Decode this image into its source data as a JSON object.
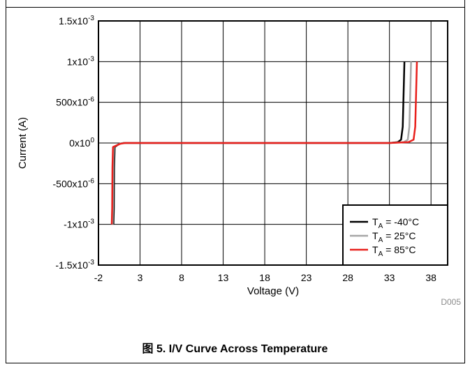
{
  "figure": {
    "tag": "D005",
    "caption": "图 5. I/V Curve Across Temperature"
  },
  "colors": {
    "series_minus40": "#000000",
    "series_25": "#a6a6a6",
    "series_85": "#e8201c"
  },
  "chart_data": {
    "type": "line",
    "title": "",
    "xlabel": "Voltage (V)",
    "ylabel": "Current (A)",
    "xlim": [
      -2,
      40
    ],
    "ylim": [
      -0.0015,
      0.0015
    ],
    "x_ticks": [
      -2,
      3,
      8,
      13,
      18,
      23,
      28,
      33,
      38
    ],
    "x_tick_labels": [
      "-2",
      "3",
      "8",
      "13",
      "18",
      "23",
      "28",
      "33",
      "38"
    ],
    "y_ticks": [
      0.0015,
      0.001,
      0.0005,
      0,
      -0.0005,
      -0.001,
      -0.0015
    ],
    "y_tick_labels": [
      {
        "base": "1.5x10",
        "exp": "-3"
      },
      {
        "base": "1x10",
        "exp": "-3"
      },
      {
        "base": "500x10",
        "exp": "-6"
      },
      {
        "base": "0x10",
        "exp": "0"
      },
      {
        "base": "-500x10",
        "exp": "-6"
      },
      {
        "base": "-1x10",
        "exp": "-3"
      },
      {
        "base": "-1.5x10",
        "exp": "-3"
      }
    ],
    "grid": true,
    "legend_position": "bottom-right",
    "series": [
      {
        "name_main": "T",
        "name_sub": "A",
        "name_rest": " = -40°C",
        "color": "#000000",
        "points": [
          [
            -0.2,
            -0.001
          ],
          [
            -0.15,
            -0.0008
          ],
          [
            -0.12,
            -0.0003
          ],
          [
            -0.05,
            -5e-05
          ],
          [
            0.5,
            -1e-05
          ],
          [
            1,
            0
          ],
          [
            33,
            0
          ],
          [
            34.0,
            1e-05
          ],
          [
            34.4,
            4e-05
          ],
          [
            34.6,
            0.0002
          ],
          [
            34.7,
            0.0006
          ],
          [
            34.8,
            0.001
          ]
        ]
      },
      {
        "name_main": "T",
        "name_sub": "A",
        "name_rest": " = 25°C",
        "color": "#a6a6a6",
        "points": [
          [
            -0.3,
            -0.001
          ],
          [
            -0.25,
            -0.0008
          ],
          [
            -0.22,
            -0.0003
          ],
          [
            -0.15,
            -5e-05
          ],
          [
            0.5,
            -1e-05
          ],
          [
            1,
            0
          ],
          [
            33,
            0
          ],
          [
            34.7,
            1e-05
          ],
          [
            35.2,
            4e-05
          ],
          [
            35.4,
            0.0002
          ],
          [
            35.5,
            0.0006
          ],
          [
            35.6,
            0.001
          ]
        ]
      },
      {
        "name_main": "T",
        "name_sub": "A",
        "name_rest": " = 85°C",
        "color": "#e8201c",
        "points": [
          [
            -0.4,
            -0.001
          ],
          [
            -0.35,
            -0.0008
          ],
          [
            -0.32,
            -0.0003
          ],
          [
            -0.25,
            -5e-05
          ],
          [
            0.6,
            -1e-05
          ],
          [
            1.2,
            0
          ],
          [
            33,
            0
          ],
          [
            35.3,
            1e-05
          ],
          [
            35.9,
            4e-05
          ],
          [
            36.1,
            0.0002
          ],
          [
            36.2,
            0.0006
          ],
          [
            36.3,
            0.001
          ]
        ]
      }
    ]
  }
}
